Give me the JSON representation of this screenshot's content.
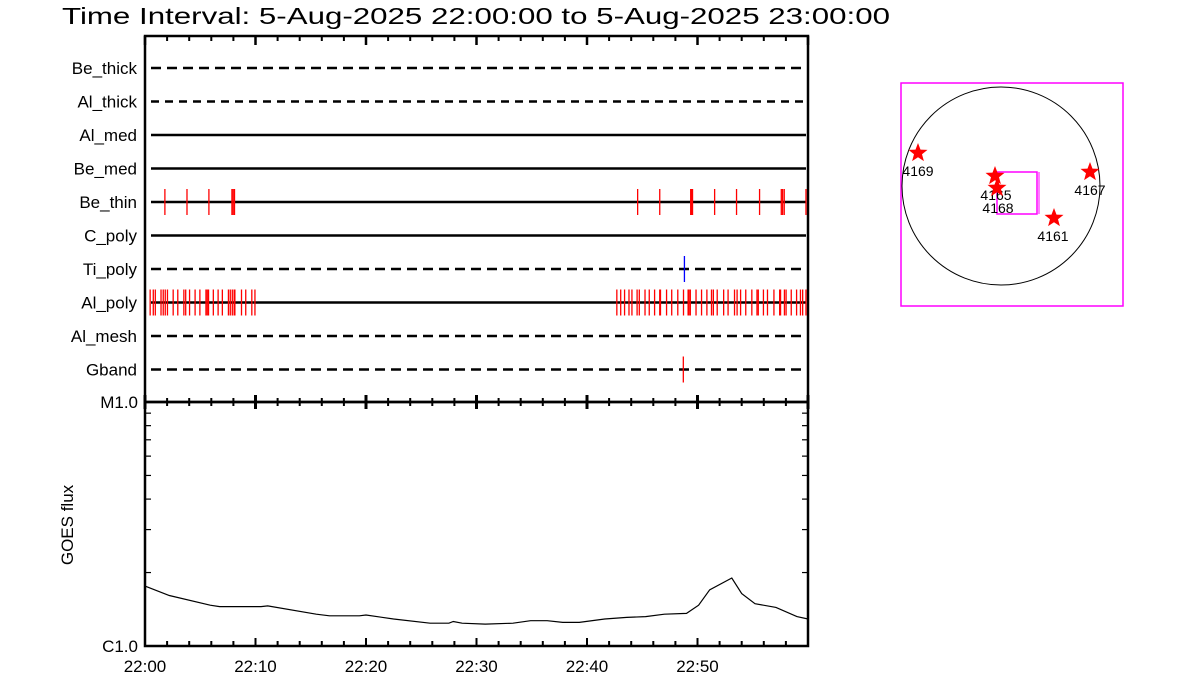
{
  "title": "Time Interval:  5-Aug-2025 22:00:00 to  5-Aug-2025 23:00:00",
  "colors": {
    "event": "#ff0000",
    "event_alt": "#0000ff",
    "map_box": "#ff00ff",
    "axes": "#000000"
  },
  "chart_data": [
    {
      "type": "scatter",
      "description_kind": "event-timeline",
      "xlim": [
        "22:00:00",
        "23:00:00"
      ],
      "rows": [
        {
          "name": "Be_thick",
          "line": "dashed",
          "events": []
        },
        {
          "name": "Al_thick",
          "line": "dashed",
          "events": []
        },
        {
          "name": "Al_med",
          "line": "solid",
          "events": []
        },
        {
          "name": "Be_med",
          "line": "solid",
          "events": []
        },
        {
          "name": "Be_thin",
          "line": "solid",
          "color": "#ff0000",
          "events": [
            "22:01:48",
            "22:03:48",
            "22:05:47",
            "22:07:52",
            "22:07:59",
            "22:08:06",
            "22:44:35",
            "22:46:35",
            "22:49:23",
            "22:49:28",
            "22:49:33",
            "22:51:33",
            "22:53:32",
            "22:55:37",
            "22:57:35",
            "22:57:42",
            "22:57:51",
            "22:59:49"
          ]
        },
        {
          "name": "C_poly",
          "line": "solid",
          "events": []
        },
        {
          "name": "Ti_poly",
          "line": "dashed",
          "color": "#0000ff",
          "events": [
            "22:48:49"
          ]
        },
        {
          "name": "Al_poly",
          "line": "solid",
          "color": "#ff0000",
          "events": [
            "22:00:28",
            "22:00:45",
            "22:00:56",
            "22:01:27",
            "22:01:39",
            "22:01:50",
            "22:02:02",
            "22:02:33",
            "22:02:58",
            "22:03:31",
            "22:03:41",
            "22:04:02",
            "22:04:32",
            "22:04:58",
            "22:05:31",
            "22:05:38",
            "22:05:45",
            "22:06:11",
            "22:06:37",
            "22:07:00",
            "22:07:33",
            "22:07:43",
            "22:07:54",
            "22:08:04",
            "22:08:08",
            "22:08:44",
            "22:09:07",
            "22:09:40",
            "22:09:57",
            "22:42:42",
            "22:43:03",
            "22:43:24",
            "22:43:48",
            "22:44:04",
            "22:44:32",
            "22:44:44",
            "22:45:15",
            "22:45:38",
            "22:46:07",
            "22:46:35",
            "22:46:39",
            "22:47:12",
            "22:47:40",
            "22:48:13",
            "22:48:44",
            "22:49:09",
            "22:49:14",
            "22:49:21",
            "22:49:52",
            "22:50:22",
            "22:50:51",
            "22:51:16",
            "22:51:26",
            "22:51:47",
            "22:52:22",
            "22:52:46",
            "22:53:21",
            "22:53:35",
            "22:53:54",
            "22:54:22",
            "22:54:55",
            "22:55:23",
            "22:55:30",
            "22:55:58",
            "22:56:20",
            "22:56:55",
            "22:57:26",
            "22:57:31",
            "22:57:52",
            "22:58:01",
            "22:58:29",
            "22:58:58",
            "22:59:19",
            "22:59:31",
            "22:59:49"
          ]
        },
        {
          "name": "Al_mesh",
          "line": "dashed",
          "events": []
        },
        {
          "name": "Gband",
          "line": "dashed",
          "color": "#ff0000",
          "events": [
            "22:48:43"
          ]
        }
      ]
    },
    {
      "type": "line",
      "ylabel": "GOES flux",
      "yscale": "log",
      "ylim": [
        1e-06,
        1e-05
      ],
      "ytick_labels": [
        "C1.0",
        "M1.0"
      ],
      "xlim": [
        "22:00:00",
        "23:00:00"
      ],
      "xtick_labels": [
        "22:00",
        "22:10",
        "22:20",
        "22:30",
        "22:40",
        "22:50"
      ],
      "x": [
        "22:00:00",
        "22:02:12",
        "22:05:54",
        "22:06:45",
        "22:10:30",
        "22:11:06",
        "22:15:30",
        "22:16:42",
        "22:19:24",
        "22:20:00",
        "22:22:30",
        "22:25:48",
        "22:27:30",
        "22:27:54",
        "22:28:42",
        "22:30:48",
        "22:33:18",
        "22:34:54",
        "22:36:24",
        "22:37:48",
        "22:39:18",
        "22:41:36",
        "22:43:36",
        "22:45:18",
        "22:47:00",
        "22:49:00",
        "22:50:06",
        "22:51:06",
        "22:53:06",
        "22:54:00",
        "22:55:12",
        "22:57:06",
        "22:59:00",
        "23:00:00"
      ],
      "y": [
        1.76e-06,
        1.61e-06,
        1.47e-06,
        1.45e-06,
        1.45e-06,
        1.46e-06,
        1.35e-06,
        1.33e-06,
        1.33e-06,
        1.34e-06,
        1.29e-06,
        1.24e-06,
        1.24e-06,
        1.26e-06,
        1.24e-06,
        1.23e-06,
        1.24e-06,
        1.27e-06,
        1.27e-06,
        1.25e-06,
        1.25e-06,
        1.29e-06,
        1.31e-06,
        1.32e-06,
        1.35e-06,
        1.36e-06,
        1.47e-06,
        1.7e-06,
        1.9e-06,
        1.64e-06,
        1.49e-06,
        1.44e-06,
        1.32e-06,
        1.29e-06
      ]
    }
  ],
  "map": {
    "regions": [
      {
        "label": "4169"
      },
      {
        "label": "4165"
      },
      {
        "label": "4168"
      },
      {
        "label": "4167"
      },
      {
        "label": "4161"
      }
    ]
  }
}
